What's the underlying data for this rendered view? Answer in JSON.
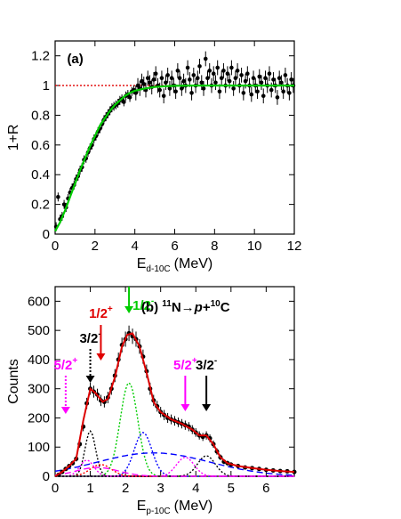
{
  "chart_data": [
    {
      "panel_label": "(a)",
      "type": "scatter",
      "xlabel": "E",
      "xlabel_sub": "d-10C",
      "xlabel_unit": "(MeV)",
      "ylabel": "1+R",
      "xlim": [
        0,
        12
      ],
      "ylim": [
        0,
        1.3
      ],
      "xticks": [
        "0",
        "2",
        "4",
        "6",
        "8",
        "10",
        "12"
      ],
      "yticks": [
        "0",
        "0.2",
        "0.4",
        "0.6",
        "0.8",
        "1",
        "1.2"
      ],
      "reference_line": {
        "y": 1.0,
        "color": "#e00000",
        "style": "dotted"
      },
      "fit_curve": {
        "color": "#00cc00",
        "points": [
          [
            0,
            0.02
          ],
          [
            0.25,
            0.08
          ],
          [
            0.5,
            0.16
          ],
          [
            0.75,
            0.25
          ],
          [
            1.0,
            0.34
          ],
          [
            1.25,
            0.43
          ],
          [
            1.5,
            0.51
          ],
          [
            1.75,
            0.59
          ],
          [
            2.0,
            0.66
          ],
          [
            2.25,
            0.73
          ],
          [
            2.5,
            0.78
          ],
          [
            2.75,
            0.83
          ],
          [
            3.0,
            0.87
          ],
          [
            3.25,
            0.9
          ],
          [
            3.5,
            0.93
          ],
          [
            3.75,
            0.95
          ],
          [
            4.0,
            0.965
          ],
          [
            4.5,
            0.98
          ],
          [
            5.0,
            0.99
          ],
          [
            5.5,
            0.995
          ],
          [
            6.0,
            0.998
          ],
          [
            7.0,
            1.0
          ],
          [
            12.0,
            1.0
          ]
        ]
      },
      "data_points": [
        [
          0.05,
          0.05
        ],
        [
          0.15,
          0.25
        ],
        [
          0.25,
          0.1
        ],
        [
          0.35,
          0.12
        ],
        [
          0.45,
          0.2
        ],
        [
          0.55,
          0.18
        ],
        [
          0.65,
          0.24
        ],
        [
          0.75,
          0.28
        ],
        [
          0.85,
          0.31
        ],
        [
          0.95,
          0.33
        ],
        [
          1.05,
          0.37
        ],
        [
          1.15,
          0.39
        ],
        [
          1.25,
          0.43
        ],
        [
          1.35,
          0.45
        ],
        [
          1.45,
          0.5
        ],
        [
          1.55,
          0.51
        ],
        [
          1.65,
          0.55
        ],
        [
          1.75,
          0.58
        ],
        [
          1.85,
          0.6
        ],
        [
          1.95,
          0.64
        ],
        [
          2.05,
          0.66
        ],
        [
          2.15,
          0.69
        ],
        [
          2.25,
          0.71
        ],
        [
          2.35,
          0.74
        ],
        [
          2.45,
          0.77
        ],
        [
          2.55,
          0.79
        ],
        [
          2.65,
          0.81
        ],
        [
          2.75,
          0.83
        ],
        [
          2.85,
          0.85
        ],
        [
          2.95,
          0.86
        ],
        [
          3.05,
          0.87
        ],
        [
          3.15,
          0.88
        ],
        [
          3.25,
          0.9
        ],
        [
          3.35,
          0.91
        ],
        [
          3.45,
          0.89
        ],
        [
          3.55,
          0.93
        ],
        [
          3.65,
          0.94
        ],
        [
          3.75,
          0.92
        ],
        [
          3.85,
          0.96
        ],
        [
          3.95,
          0.97
        ],
        [
          4.05,
          0.95
        ],
        [
          4.15,
          1.0
        ],
        [
          4.25,
          0.98
        ],
        [
          4.35,
          1.03
        ],
        [
          4.45,
          1.01
        ],
        [
          4.55,
          0.97
        ],
        [
          4.65,
          1.05
        ],
        [
          4.75,
          1.02
        ],
        [
          4.85,
          0.99
        ],
        [
          4.95,
          1.04
        ],
        [
          5.05,
          1.08
        ],
        [
          5.15,
          1.0
        ],
        [
          5.25,
          0.97
        ],
        [
          5.35,
          1.05
        ],
        [
          5.45,
          0.93
        ],
        [
          5.55,
          1.02
        ],
        [
          5.65,
          1.07
        ],
        [
          5.75,
          0.98
        ],
        [
          5.85,
          1.05
        ],
        [
          5.95,
          1.0
        ],
        [
          6.05,
          0.96
        ],
        [
          6.15,
          1.1
        ],
        [
          6.25,
          1.05
        ],
        [
          6.35,
          0.98
        ],
        [
          6.45,
          1.03
        ],
        [
          6.55,
          1.0
        ],
        [
          6.65,
          1.12
        ],
        [
          6.75,
          1.04
        ],
        [
          6.85,
          0.95
        ],
        [
          6.95,
          1.07
        ],
        [
          7.05,
          1.0
        ],
        [
          7.15,
          1.05
        ],
        [
          7.25,
          1.13
        ],
        [
          7.35,
          1.02
        ],
        [
          7.45,
          0.98
        ],
        [
          7.55,
          1.18
        ],
        [
          7.65,
          1.05
        ],
        [
          7.75,
          1.1
        ],
        [
          7.85,
          1.0
        ],
        [
          7.95,
          1.08
        ],
        [
          8.05,
          1.02
        ],
        [
          8.15,
          1.12
        ],
        [
          8.25,
          0.96
        ],
        [
          8.35,
          1.05
        ],
        [
          8.45,
          1.1
        ],
        [
          8.55,
          1.0
        ],
        [
          8.65,
          1.08
        ],
        [
          8.75,
          1.03
        ],
        [
          8.85,
          1.12
        ],
        [
          8.95,
          0.98
        ],
        [
          9.05,
          1.05
        ],
        [
          9.15,
          1.1
        ],
        [
          9.25,
          1.0
        ],
        [
          9.35,
          1.07
        ],
        [
          9.45,
          0.95
        ],
        [
          9.55,
          1.03
        ],
        [
          9.65,
          1.08
        ],
        [
          9.75,
          1.0
        ],
        [
          9.85,
          0.94
        ],
        [
          9.95,
          1.05
        ],
        [
          10.05,
          1.0
        ],
        [
          10.15,
          0.96
        ],
        [
          10.25,
          1.06
        ],
        [
          10.35,
          1.02
        ],
        [
          10.45,
          0.93
        ],
        [
          10.55,
          1.05
        ],
        [
          10.65,
          1.0
        ],
        [
          10.75,
          1.08
        ],
        [
          10.85,
          0.97
        ],
        [
          10.95,
          1.04
        ],
        [
          11.05,
          1.0
        ],
        [
          11.15,
          0.92
        ],
        [
          11.25,
          1.05
        ],
        [
          11.35,
          1.02
        ],
        [
          11.45,
          0.96
        ],
        [
          11.55,
          1.07
        ],
        [
          11.65,
          1.0
        ],
        [
          11.75,
          0.95
        ],
        [
          11.85,
          1.04
        ],
        [
          11.95,
          1.0
        ]
      ],
      "grid": false
    },
    {
      "panel_label": "(b)",
      "reaction": {
        "mass": "11",
        "lhs": "N→",
        "p": "p",
        "plus": "+",
        "mass2": "10",
        "rhs": "C"
      },
      "type": "scatter",
      "xlabel": "E",
      "xlabel_sub": "p-10C",
      "xlabel_unit": "(MeV)",
      "ylabel": "Counts",
      "xlim": [
        0,
        6.8
      ],
      "ylim": [
        0,
        650
      ],
      "xticks": [
        "0",
        "1",
        "2",
        "3",
        "4",
        "5",
        "6"
      ],
      "yticks": [
        "0",
        "100",
        "200",
        "300",
        "400",
        "500",
        "600"
      ],
      "grid": false,
      "data_points": [
        [
          0.1,
          5
        ],
        [
          0.2,
          15
        ],
        [
          0.3,
          25
        ],
        [
          0.4,
          35
        ],
        [
          0.5,
          45
        ],
        [
          0.6,
          60
        ],
        [
          0.7,
          110
        ],
        [
          0.8,
          170
        ],
        [
          0.9,
          250
        ],
        [
          1.0,
          300
        ],
        [
          1.1,
          290
        ],
        [
          1.2,
          280
        ],
        [
          1.3,
          260
        ],
        [
          1.4,
          255
        ],
        [
          1.5,
          270
        ],
        [
          1.6,
          300
        ],
        [
          1.7,
          345
        ],
        [
          1.8,
          400
        ],
        [
          1.9,
          450
        ],
        [
          2.0,
          470
        ],
        [
          2.1,
          490
        ],
        [
          2.2,
          480
        ],
        [
          2.3,
          470
        ],
        [
          2.4,
          445
        ],
        [
          2.5,
          410
        ],
        [
          2.6,
          360
        ],
        [
          2.7,
          300
        ],
        [
          2.8,
          260
        ],
        [
          2.9,
          240
        ],
        [
          3.0,
          220
        ],
        [
          3.1,
          210
        ],
        [
          3.2,
          200
        ],
        [
          3.3,
          195
        ],
        [
          3.4,
          190
        ],
        [
          3.5,
          185
        ],
        [
          3.6,
          180
        ],
        [
          3.7,
          175
        ],
        [
          3.8,
          170
        ],
        [
          3.9,
          160
        ],
        [
          4.0,
          150
        ],
        [
          4.1,
          140
        ],
        [
          4.2,
          135
        ],
        [
          4.3,
          140
        ],
        [
          4.4,
          130
        ],
        [
          4.5,
          110
        ],
        [
          4.6,
          85
        ],
        [
          4.7,
          65
        ],
        [
          4.8,
          50
        ],
        [
          4.9,
          45
        ],
        [
          5.0,
          40
        ],
        [
          5.2,
          35
        ],
        [
          5.4,
          30
        ],
        [
          5.6,
          28
        ],
        [
          5.8,
          25
        ],
        [
          6.0,
          22
        ],
        [
          6.2,
          20
        ],
        [
          6.4,
          18
        ],
        [
          6.6,
          17
        ],
        [
          6.8,
          15
        ]
      ],
      "total_fit": {
        "color": "#dd0000",
        "points": [
          [
            0,
            0
          ],
          [
            0.2,
            15
          ],
          [
            0.4,
            35
          ],
          [
            0.6,
            60
          ],
          [
            0.8,
            190
          ],
          [
            1.0,
            300
          ],
          [
            1.15,
            285
          ],
          [
            1.35,
            255
          ],
          [
            1.5,
            265
          ],
          [
            1.7,
            340
          ],
          [
            1.9,
            445
          ],
          [
            2.05,
            485
          ],
          [
            2.2,
            490
          ],
          [
            2.4,
            445
          ],
          [
            2.6,
            355
          ],
          [
            2.8,
            255
          ],
          [
            3.0,
            220
          ],
          [
            3.3,
            195
          ],
          [
            3.6,
            180
          ],
          [
            3.9,
            160
          ],
          [
            4.1,
            140
          ],
          [
            4.3,
            140
          ],
          [
            4.5,
            110
          ],
          [
            4.7,
            65
          ],
          [
            4.9,
            45
          ],
          [
            5.2,
            35
          ],
          [
            5.6,
            28
          ],
          [
            6.0,
            22
          ],
          [
            6.4,
            18
          ],
          [
            6.8,
            15
          ]
        ]
      },
      "components": [
        {
          "color": "#000000",
          "style": "dotted",
          "center": 1.0,
          "height": 155,
          "width": 0.15
        },
        {
          "color": "#ff00ff",
          "style": "dotted",
          "center": 0.9,
          "height": 55,
          "width": 0.2
        },
        {
          "color": "#ff0000",
          "style": "dotted",
          "center": 1.3,
          "height": 40,
          "width": 0.3
        },
        {
          "color": "#00cc00",
          "style": "dotted",
          "center": 2.1,
          "height": 320,
          "width": 0.25
        },
        {
          "color": "#0000ff",
          "style": "dotted",
          "center": 2.5,
          "height": 150,
          "width": 0.25
        },
        {
          "color": "#ff00ff",
          "style": "dotted",
          "center": 3.7,
          "height": 65,
          "width": 0.25
        },
        {
          "color": "#000000",
          "style": "dotted",
          "center": 4.3,
          "height": 70,
          "width": 0.25
        },
        {
          "color": "#0000ff",
          "style": "dashed",
          "center": 2.8,
          "height": 80,
          "width": 1.6
        },
        {
          "color": "#ff00ff",
          "style": "dashed",
          "center": 1.2,
          "height": 30,
          "width": 0.6
        }
      ],
      "annotations": [
        {
          "label": "5/2",
          "sup": "+",
          "color": "#ff00ff",
          "x": 0.3,
          "arrow": "dotted"
        },
        {
          "label": "3/2",
          "sup": "-",
          "color": "#000000",
          "x": 1.0,
          "arrow": "dotted"
        },
        {
          "label": "1/2",
          "sup": "+",
          "color": "#e00000",
          "x": 1.3,
          "arrow": "solid"
        },
        {
          "label": "1/2",
          "sup": "-",
          "color": "#00cc00",
          "x": 2.1,
          "arrow": "solid"
        },
        {
          "label": "5/2",
          "sup": "+",
          "color": "#ff00ff",
          "x": 3.7,
          "arrow": "solid"
        },
        {
          "label": "3/2",
          "sup": "-",
          "color": "#000000",
          "x": 4.3,
          "arrow": "solid"
        }
      ]
    }
  ]
}
